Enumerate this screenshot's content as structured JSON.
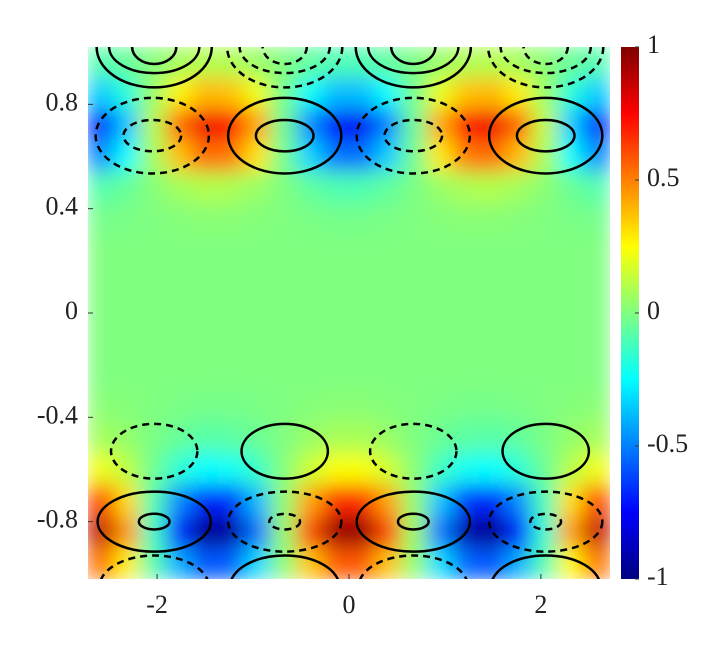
{
  "chart_data": {
    "type": "heatmap",
    "colormap": "jet",
    "xlim": [
      -2.72,
      2.72
    ],
    "ylim": [
      -1.02,
      1.02
    ],
    "zlim": [
      -1,
      1
    ],
    "xticks": [
      -2,
      0,
      2
    ],
    "yticks": [
      -0.8,
      -0.4,
      0,
      0.4,
      0.8
    ],
    "zticks": [
      -1,
      -0.5,
      0,
      0.5,
      1
    ],
    "x": [
      -2.584,
      -2.312,
      -2.04,
      -1.768,
      -1.496,
      -1.224,
      -0.952,
      -0.68,
      -0.408,
      -0.136,
      0.136,
      0.408,
      0.68,
      0.952,
      1.224,
      1.496,
      1.768,
      2.04,
      2.312,
      2.584
    ],
    "y": [
      0.96,
      0.84,
      0.72,
      0.6,
      0.48,
      0.36,
      0.24,
      0.12,
      0,
      -0.12,
      -0.24,
      -0.36,
      -0.48,
      -0.6,
      -0.72,
      -0.84,
      -0.96
    ],
    "z": [
      [
        -0.09,
        -0.05,
        0.01,
        0.07,
        0.1,
        0.09,
        0.05,
        0,
        -0.06,
        -0.1,
        -0.1,
        -0.06,
        -0.01,
        0.05,
        0.09,
        0.1,
        0.07,
        0.02,
        -0.04,
        -0.09
      ],
      [
        -0.35,
        -0.18,
        0.05,
        0.27,
        0.39,
        0.37,
        0.22,
        -0.02,
        -0.24,
        -0.38,
        -0.38,
        -0.25,
        -0.02,
        0.21,
        0.37,
        0.39,
        0.28,
        0.06,
        -0.18,
        -0.35
      ],
      [
        -0.7,
        -0.37,
        0.1,
        0.54,
        0.78,
        0.74,
        0.43,
        -0.03,
        -0.48,
        -0.76,
        -0.77,
        -0.5,
        -0.05,
        0.42,
        0.74,
        0.78,
        0.55,
        0.13,
        -0.35,
        -0.7
      ],
      [
        -0.48,
        -0.25,
        0.07,
        0.37,
        0.54,
        0.51,
        0.3,
        -0.02,
        -0.33,
        -0.52,
        -0.53,
        -0.34,
        -0.03,
        0.29,
        0.51,
        0.54,
        0.38,
        0.09,
        -0.24,
        -0.48
      ],
      [
        -0.09,
        -0.05,
        0.01,
        0.07,
        0.1,
        0.09,
        0.05,
        0,
        -0.06,
        -0.1,
        -0.1,
        -0.06,
        -0.01,
        0.05,
        0.09,
        0.1,
        0.07,
        0.02,
        -0.04,
        -0.09
      ],
      [
        -0.02,
        -0.01,
        0,
        0.01,
        0.02,
        0.02,
        0.01,
        0,
        -0.01,
        -0.02,
        -0.02,
        -0.01,
        0,
        0.01,
        0.02,
        0.02,
        0.01,
        0,
        -0.01,
        -0.02
      ],
      [
        0,
        0,
        0,
        0,
        0,
        0,
        0,
        0,
        0,
        0,
        0,
        0,
        0,
        0,
        0,
        0,
        0,
        0,
        0,
        0
      ],
      [
        0,
        0,
        0,
        0,
        0,
        0,
        0,
        0,
        0,
        0,
        0,
        0,
        0,
        0,
        0,
        0,
        0,
        0,
        0,
        0
      ],
      [
        0,
        0,
        0,
        0,
        0,
        0,
        0,
        0,
        0,
        0,
        0,
        0,
        0,
        0,
        0,
        0,
        0,
        0,
        0,
        0
      ],
      [
        0,
        0,
        0,
        0,
        0,
        0,
        0,
        0,
        0,
        0,
        0,
        0,
        0,
        0,
        0,
        0,
        0,
        0,
        0,
        0
      ],
      [
        0,
        0,
        0,
        0,
        0,
        0,
        0,
        0,
        0,
        0,
        0,
        0,
        0,
        0,
        0,
        0,
        0,
        0,
        0,
        0
      ],
      [
        0.02,
        0.01,
        0,
        -0.01,
        -0.02,
        -0.02,
        -0.01,
        0,
        0.01,
        0.02,
        0.02,
        0.01,
        0,
        -0.01,
        -0.02,
        -0.02,
        -0.01,
        0,
        0.01,
        0.02
      ],
      [
        0.07,
        0.04,
        -0.01,
        -0.05,
        -0.08,
        -0.07,
        -0.04,
        0,
        0.05,
        0.08,
        0.08,
        0.05,
        0,
        -0.04,
        -0.07,
        -0.08,
        -0.06,
        -0.01,
        0.04,
        0.07
      ],
      [
        0.22,
        0.12,
        -0.03,
        -0.17,
        -0.25,
        -0.23,
        -0.14,
        0.01,
        0.15,
        0.24,
        0.24,
        0.16,
        0.02,
        -0.13,
        -0.23,
        -0.25,
        -0.17,
        -0.04,
        0.11,
        0.22
      ],
      [
        0.62,
        0.32,
        -0.09,
        -0.48,
        -0.69,
        -0.65,
        -0.38,
        0.03,
        0.42,
        0.67,
        0.67,
        0.43,
        0.04,
        -0.36,
        -0.64,
        -0.69,
        -0.48,
        -0.11,
        0.31,
        0.61
      ],
      [
        0.88,
        0.46,
        -0.13,
        -0.68,
        -0.98,
        -0.93,
        -0.54,
        0.04,
        0.6,
        0.95,
        0.96,
        0.62,
        0.06,
        -0.52,
        -0.92,
        -0.98,
        -0.69,
        -0.16,
        0.44,
        0.87
      ],
      [
        0.53,
        0.28,
        -0.08,
        -0.41,
        -0.59,
        -0.56,
        -0.32,
        0.02,
        0.36,
        0.57,
        0.58,
        0.37,
        0.04,
        -0.31,
        -0.55,
        -0.59,
        -0.41,
        -0.1,
        0.26,
        0.52
      ]
    ],
    "contours": [
      {
        "x": -2.03,
        "y": 1.02,
        "rx": 0.6,
        "ry": 0.155,
        "dashed": false
      },
      {
        "x": -2.03,
        "y": 1.02,
        "rx": 0.47,
        "ry": 0.1,
        "dashed": false
      },
      {
        "x": -2.03,
        "y": 1.02,
        "rx": 0.23,
        "ry": 0.065,
        "dashed": false
      },
      {
        "x": -0.67,
        "y": 1.02,
        "rx": 0.6,
        "ry": 0.155,
        "dashed": true
      },
      {
        "x": -0.67,
        "y": 1.02,
        "rx": 0.47,
        "ry": 0.1,
        "dashed": true
      },
      {
        "x": -0.67,
        "y": 1.02,
        "rx": 0.23,
        "ry": 0.065,
        "dashed": true
      },
      {
        "x": 0.67,
        "y": 1.02,
        "rx": 0.6,
        "ry": 0.155,
        "dashed": false
      },
      {
        "x": 0.67,
        "y": 1.02,
        "rx": 0.47,
        "ry": 0.1,
        "dashed": false
      },
      {
        "x": 0.67,
        "y": 1.02,
        "rx": 0.23,
        "ry": 0.065,
        "dashed": false
      },
      {
        "x": 2.05,
        "y": 1.02,
        "rx": 0.6,
        "ry": 0.155,
        "dashed": true
      },
      {
        "x": 2.05,
        "y": 1.02,
        "rx": 0.47,
        "ry": 0.1,
        "dashed": true
      },
      {
        "x": 2.05,
        "y": 1.02,
        "rx": 0.23,
        "ry": 0.065,
        "dashed": true
      },
      {
        "x": -2.05,
        "y": 0.68,
        "rx": 0.59,
        "ry": 0.145,
        "dashed": true
      },
      {
        "x": -2.05,
        "y": 0.68,
        "rx": 0.3,
        "ry": 0.06,
        "dashed": true
      },
      {
        "x": -0.67,
        "y": 0.68,
        "rx": 0.59,
        "ry": 0.145,
        "dashed": false
      },
      {
        "x": -0.67,
        "y": 0.68,
        "rx": 0.3,
        "ry": 0.06,
        "dashed": false
      },
      {
        "x": 0.67,
        "y": 0.68,
        "rx": 0.59,
        "ry": 0.145,
        "dashed": true
      },
      {
        "x": 0.67,
        "y": 0.68,
        "rx": 0.3,
        "ry": 0.06,
        "dashed": true
      },
      {
        "x": 2.05,
        "y": 0.68,
        "rx": 0.59,
        "ry": 0.145,
        "dashed": false
      },
      {
        "x": 2.05,
        "y": 0.68,
        "rx": 0.3,
        "ry": 0.06,
        "dashed": false
      },
      {
        "x": -2.03,
        "y": -0.53,
        "rx": 0.45,
        "ry": 0.105,
        "dashed": true
      },
      {
        "x": -0.67,
        "y": -0.53,
        "rx": 0.45,
        "ry": 0.105,
        "dashed": false
      },
      {
        "x": 0.67,
        "y": -0.53,
        "rx": 0.45,
        "ry": 0.105,
        "dashed": true
      },
      {
        "x": 2.05,
        "y": -0.53,
        "rx": 0.45,
        "ry": 0.105,
        "dashed": false
      },
      {
        "x": -2.03,
        "y": -0.8,
        "rx": 0.59,
        "ry": 0.115,
        "dashed": false
      },
      {
        "x": -2.03,
        "y": -0.8,
        "rx": 0.16,
        "ry": 0.03,
        "dashed": false
      },
      {
        "x": -0.67,
        "y": -0.8,
        "rx": 0.59,
        "ry": 0.115,
        "dashed": true
      },
      {
        "x": -0.67,
        "y": -0.8,
        "rx": 0.16,
        "ry": 0.03,
        "dashed": true
      },
      {
        "x": 0.67,
        "y": -0.8,
        "rx": 0.59,
        "ry": 0.115,
        "dashed": false
      },
      {
        "x": 0.67,
        "y": -0.8,
        "rx": 0.16,
        "ry": 0.03,
        "dashed": false
      },
      {
        "x": 2.05,
        "y": -0.8,
        "rx": 0.59,
        "ry": 0.115,
        "dashed": true
      },
      {
        "x": 2.05,
        "y": -0.8,
        "rx": 0.16,
        "ry": 0.03,
        "dashed": true
      },
      {
        "x": -2.03,
        "y": -1.05,
        "rx": 0.57,
        "ry": 0.12,
        "dashed": true
      },
      {
        "x": -0.67,
        "y": -1.05,
        "rx": 0.57,
        "ry": 0.12,
        "dashed": false
      },
      {
        "x": 0.67,
        "y": -1.05,
        "rx": 0.57,
        "ry": 0.12,
        "dashed": true
      },
      {
        "x": 2.05,
        "y": -1.05,
        "rx": 0.57,
        "ry": 0.12,
        "dashed": false
      }
    ]
  }
}
